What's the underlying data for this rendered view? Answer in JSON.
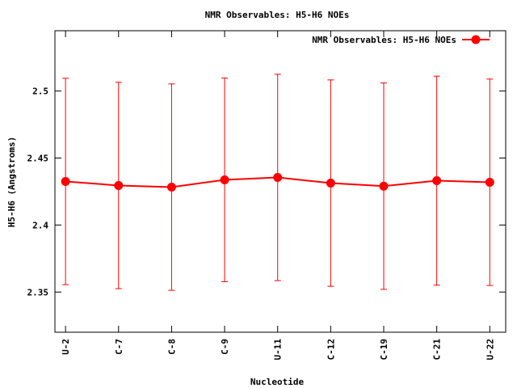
{
  "chart_data": {
    "type": "line",
    "title": "NMR Observables: H5-H6 NOEs",
    "x_label": "Nucleotide",
    "y_label": "H5-H6 (Angstroms)",
    "categories": [
      "U-2",
      "C-7",
      "C-8",
      "C-9",
      "U-11",
      "C-12",
      "C-19",
      "C-21",
      "U-22"
    ],
    "series": [
      {
        "name": "NMR Observables: H5-H6 NOEs",
        "color": "#ff0000",
        "values": [
          2.4325,
          2.4295,
          2.4283,
          2.4337,
          2.4355,
          2.4313,
          2.429,
          2.4331,
          2.4319
        ],
        "errors": [
          0.077,
          0.077,
          0.077,
          0.076,
          0.077,
          0.077,
          0.077,
          0.078,
          0.077
        ]
      }
    ],
    "ylim": [
      2.32,
      2.545
    ],
    "yticks": [
      2.35,
      2.4,
      2.45,
      2.5
    ],
    "legend": "top-right"
  }
}
